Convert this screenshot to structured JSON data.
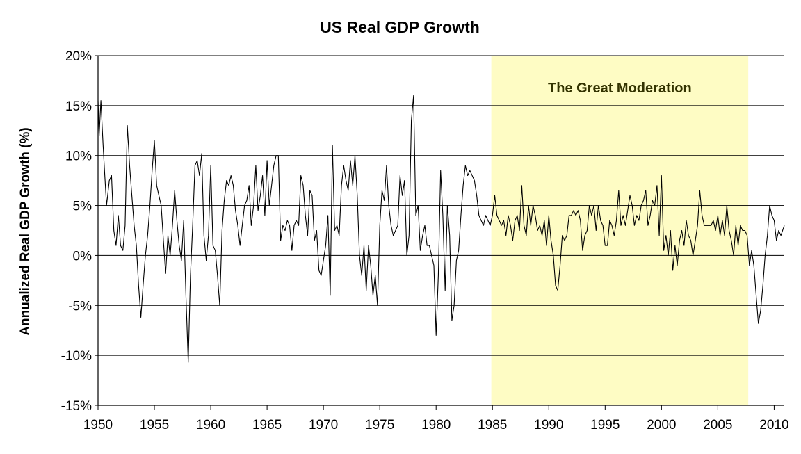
{
  "chart_data": {
    "type": "line",
    "title": "US Real GDP Growth",
    "xlabel": "",
    "ylabel": "Annualized Real GDP Growth (%)",
    "xlim": [
      1950,
      2010.9
    ],
    "ylim": [
      -15,
      20
    ],
    "x_ticks": [
      1950,
      1955,
      1960,
      1965,
      1970,
      1975,
      1980,
      1985,
      1990,
      1995,
      2000,
      2005,
      2010
    ],
    "x_tick_labels": [
      "1950",
      "1955",
      "1960",
      "1965",
      "1970",
      "1975",
      "1980",
      "1985",
      "1990",
      "1995",
      "2000",
      "2005",
      "2010"
    ],
    "y_ticks": [
      -15,
      -10,
      -5,
      0,
      5,
      10,
      15,
      20
    ],
    "y_tick_labels": [
      "-15%",
      "-10%",
      "-5%",
      "0%",
      "5%",
      "10%",
      "15%",
      "20%"
    ],
    "grid": "horizontal",
    "shaded_region": {
      "x_start": 1984.9,
      "x_end": 2007.7,
      "label": "The Great Moderation",
      "color": "#fefcc4"
    },
    "line_color": "#000000",
    "series": [
      {
        "values": [
          [
            1950.0,
            15.5
          ],
          [
            1950.1,
            12.0
          ],
          [
            1950.25,
            15.5
          ],
          [
            1950.45,
            11.0
          ],
          [
            1950.6,
            8.0
          ],
          [
            1950.75,
            5.0
          ],
          [
            1951.0,
            7.5
          ],
          [
            1951.2,
            8.0
          ],
          [
            1951.4,
            2.5
          ],
          [
            1951.6,
            1.0
          ],
          [
            1951.8,
            4.0
          ],
          [
            1952.0,
            1.0
          ],
          [
            1952.2,
            0.5
          ],
          [
            1952.4,
            3.0
          ],
          [
            1952.6,
            13.0
          ],
          [
            1952.8,
            9.0
          ],
          [
            1953.0,
            6.0
          ],
          [
            1953.2,
            3.0
          ],
          [
            1953.4,
            1.0
          ],
          [
            1953.6,
            -3.0
          ],
          [
            1953.8,
            -6.2
          ],
          [
            1954.0,
            -3.0
          ],
          [
            1954.2,
            0.0
          ],
          [
            1954.4,
            2.0
          ],
          [
            1954.6,
            5.0
          ],
          [
            1954.8,
            8.5
          ],
          [
            1955.0,
            11.5
          ],
          [
            1955.2,
            7.0
          ],
          [
            1955.4,
            6.0
          ],
          [
            1955.6,
            5.0
          ],
          [
            1955.8,
            1.5
          ],
          [
            1956.0,
            -1.8
          ],
          [
            1956.2,
            2.0
          ],
          [
            1956.4,
            0.0
          ],
          [
            1956.6,
            3.0
          ],
          [
            1956.8,
            6.5
          ],
          [
            1957.0,
            3.5
          ],
          [
            1957.2,
            1.0
          ],
          [
            1957.4,
            -0.5
          ],
          [
            1957.6,
            3.5
          ],
          [
            1957.8,
            -4.0
          ],
          [
            1958.0,
            -10.7
          ],
          [
            1958.2,
            -2.0
          ],
          [
            1958.4,
            3.0
          ],
          [
            1958.6,
            9.0
          ],
          [
            1958.8,
            9.5
          ],
          [
            1959.0,
            8.0
          ],
          [
            1959.2,
            10.2
          ],
          [
            1959.4,
            2.0
          ],
          [
            1959.6,
            -0.5
          ],
          [
            1959.8,
            2.0
          ],
          [
            1960.0,
            9.0
          ],
          [
            1960.2,
            1.0
          ],
          [
            1960.4,
            0.5
          ],
          [
            1960.6,
            -2.0
          ],
          [
            1960.8,
            -5.0
          ],
          [
            1961.0,
            2.5
          ],
          [
            1961.2,
            5.5
          ],
          [
            1961.4,
            7.5
          ],
          [
            1961.6,
            7.0
          ],
          [
            1961.8,
            8.0
          ],
          [
            1962.0,
            7.0
          ],
          [
            1962.2,
            4.5
          ],
          [
            1962.4,
            3.0
          ],
          [
            1962.6,
            1.0
          ],
          [
            1962.8,
            3.0
          ],
          [
            1963.0,
            5.0
          ],
          [
            1963.2,
            5.5
          ],
          [
            1963.4,
            7.0
          ],
          [
            1963.6,
            3.0
          ],
          [
            1963.8,
            5.0
          ],
          [
            1964.0,
            9.0
          ],
          [
            1964.2,
            4.5
          ],
          [
            1964.4,
            6.0
          ],
          [
            1964.6,
            8.0
          ],
          [
            1964.8,
            4.0
          ],
          [
            1965.0,
            9.5
          ],
          [
            1965.2,
            5.0
          ],
          [
            1965.4,
            7.0
          ],
          [
            1965.6,
            9.0
          ],
          [
            1965.8,
            10.0
          ],
          [
            1966.0,
            10.0
          ],
          [
            1966.2,
            1.5
          ],
          [
            1966.4,
            3.0
          ],
          [
            1966.6,
            2.5
          ],
          [
            1966.8,
            3.5
          ],
          [
            1967.0,
            3.0
          ],
          [
            1967.2,
            0.5
          ],
          [
            1967.4,
            3.0
          ],
          [
            1967.6,
            3.5
          ],
          [
            1967.8,
            3.0
          ],
          [
            1968.0,
            8.0
          ],
          [
            1968.2,
            7.0
          ],
          [
            1968.4,
            4.0
          ],
          [
            1968.6,
            2.0
          ],
          [
            1968.8,
            6.5
          ],
          [
            1969.0,
            6.0
          ],
          [
            1969.2,
            1.5
          ],
          [
            1969.4,
            2.5
          ],
          [
            1969.6,
            -1.5
          ],
          [
            1969.8,
            -2.0
          ],
          [
            1970.0,
            -0.5
          ],
          [
            1970.2,
            1.0
          ],
          [
            1970.4,
            4.0
          ],
          [
            1970.6,
            -4.0
          ],
          [
            1970.8,
            11.0
          ],
          [
            1971.0,
            2.5
          ],
          [
            1971.2,
            3.0
          ],
          [
            1971.4,
            2.0
          ],
          [
            1971.6,
            7.0
          ],
          [
            1971.8,
            9.0
          ],
          [
            1972.0,
            7.5
          ],
          [
            1972.2,
            6.5
          ],
          [
            1972.4,
            9.5
          ],
          [
            1972.6,
            7.0
          ],
          [
            1972.8,
            10.0
          ],
          [
            1973.0,
            6.0
          ],
          [
            1973.2,
            0.0
          ],
          [
            1973.4,
            -2.0
          ],
          [
            1973.6,
            1.0
          ],
          [
            1973.8,
            -3.5
          ],
          [
            1974.0,
            1.0
          ],
          [
            1974.2,
            -1.0
          ],
          [
            1974.4,
            -4.0
          ],
          [
            1974.6,
            -2.0
          ],
          [
            1974.8,
            -5.0
          ],
          [
            1975.0,
            3.0
          ],
          [
            1975.2,
            6.5
          ],
          [
            1975.4,
            5.5
          ],
          [
            1975.6,
            9.0
          ],
          [
            1975.8,
            5.0
          ],
          [
            1976.0,
            3.0
          ],
          [
            1976.2,
            2.0
          ],
          [
            1976.4,
            2.5
          ],
          [
            1976.6,
            3.0
          ],
          [
            1976.8,
            8.0
          ],
          [
            1977.0,
            6.0
          ],
          [
            1977.2,
            7.5
          ],
          [
            1977.4,
            0.0
          ],
          [
            1977.6,
            2.0
          ],
          [
            1977.8,
            13.5
          ],
          [
            1978.0,
            16.0
          ],
          [
            1978.2,
            4.0
          ],
          [
            1978.4,
            5.0
          ],
          [
            1978.6,
            0.5
          ],
          [
            1978.8,
            2.0
          ],
          [
            1979.0,
            3.0
          ],
          [
            1979.2,
            1.0
          ],
          [
            1979.4,
            1.0
          ],
          [
            1979.6,
            0.0
          ],
          [
            1979.8,
            -1.0
          ],
          [
            1980.0,
            -8.0
          ],
          [
            1980.2,
            -2.0
          ],
          [
            1980.4,
            8.5
          ],
          [
            1980.6,
            4.0
          ],
          [
            1980.8,
            -3.5
          ],
          [
            1981.0,
            5.0
          ],
          [
            1981.2,
            2.0
          ],
          [
            1981.4,
            -6.5
          ],
          [
            1981.6,
            -5.0
          ],
          [
            1981.8,
            -0.5
          ],
          [
            1982.0,
            0.5
          ],
          [
            1982.2,
            4.0
          ],
          [
            1982.4,
            7.0
          ],
          [
            1982.6,
            9.0
          ],
          [
            1982.8,
            8.0
          ],
          [
            1983.0,
            8.5
          ],
          [
            1983.2,
            8.0
          ],
          [
            1983.4,
            7.5
          ],
          [
            1983.6,
            6.0
          ],
          [
            1983.8,
            4.0
          ],
          [
            1984.0,
            3.5
          ],
          [
            1984.2,
            3.0
          ],
          [
            1984.4,
            4.0
          ],
          [
            1984.6,
            3.5
          ],
          [
            1984.8,
            3.0
          ],
          [
            1985.0,
            4.0
          ],
          [
            1985.2,
            6.0
          ],
          [
            1985.4,
            4.0
          ],
          [
            1985.6,
            3.5
          ],
          [
            1985.8,
            3.0
          ],
          [
            1986.0,
            3.5
          ],
          [
            1986.2,
            2.0
          ],
          [
            1986.4,
            4.0
          ],
          [
            1986.6,
            3.0
          ],
          [
            1986.8,
            1.5
          ],
          [
            1987.0,
            3.5
          ],
          [
            1987.2,
            4.0
          ],
          [
            1987.4,
            2.5
          ],
          [
            1987.6,
            7.0
          ],
          [
            1987.8,
            3.0
          ],
          [
            1988.0,
            2.0
          ],
          [
            1988.2,
            5.0
          ],
          [
            1988.4,
            3.0
          ],
          [
            1988.6,
            5.0
          ],
          [
            1988.8,
            4.0
          ],
          [
            1989.0,
            2.5
          ],
          [
            1989.2,
            3.0
          ],
          [
            1989.4,
            2.0
          ],
          [
            1989.6,
            3.5
          ],
          [
            1989.8,
            1.0
          ],
          [
            1990.0,
            4.0
          ],
          [
            1990.2,
            1.5
          ],
          [
            1990.4,
            0.0
          ],
          [
            1990.6,
            -3.0
          ],
          [
            1990.8,
            -3.5
          ],
          [
            1991.0,
            -1.0
          ],
          [
            1991.2,
            2.0
          ],
          [
            1991.4,
            1.5
          ],
          [
            1991.6,
            2.0
          ],
          [
            1991.8,
            4.0
          ],
          [
            1992.0,
            4.0
          ],
          [
            1992.2,
            4.5
          ],
          [
            1992.4,
            4.0
          ],
          [
            1992.6,
            4.5
          ],
          [
            1992.8,
            3.5
          ],
          [
            1993.0,
            0.5
          ],
          [
            1993.2,
            2.0
          ],
          [
            1993.4,
            2.5
          ],
          [
            1993.6,
            5.0
          ],
          [
            1993.8,
            4.0
          ],
          [
            1994.0,
            5.0
          ],
          [
            1994.2,
            2.5
          ],
          [
            1994.4,
            5.0
          ],
          [
            1994.6,
            3.5
          ],
          [
            1994.8,
            3.0
          ],
          [
            1995.0,
            1.0
          ],
          [
            1995.2,
            1.0
          ],
          [
            1995.4,
            3.5
          ],
          [
            1995.6,
            3.0
          ],
          [
            1995.8,
            2.0
          ],
          [
            1996.0,
            3.5
          ],
          [
            1996.2,
            6.5
          ],
          [
            1996.4,
            3.0
          ],
          [
            1996.6,
            4.0
          ],
          [
            1996.8,
            3.0
          ],
          [
            1997.0,
            4.5
          ],
          [
            1997.2,
            6.0
          ],
          [
            1997.4,
            5.0
          ],
          [
            1997.6,
            3.0
          ],
          [
            1997.8,
            4.0
          ],
          [
            1998.0,
            3.5
          ],
          [
            1998.2,
            5.0
          ],
          [
            1998.4,
            5.5
          ],
          [
            1998.6,
            6.5
          ],
          [
            1998.8,
            3.0
          ],
          [
            1999.0,
            4.0
          ],
          [
            1999.2,
            5.5
          ],
          [
            1999.4,
            5.0
          ],
          [
            1999.6,
            7.0
          ],
          [
            1999.8,
            2.0
          ],
          [
            2000.0,
            8.0
          ],
          [
            2000.2,
            0.5
          ],
          [
            2000.4,
            2.0
          ],
          [
            2000.6,
            0.0
          ],
          [
            2000.8,
            2.5
          ],
          [
            2001.0,
            -1.5
          ],
          [
            2001.2,
            1.0
          ],
          [
            2001.4,
            -1.0
          ],
          [
            2001.6,
            1.5
          ],
          [
            2001.8,
            2.5
          ],
          [
            2002.0,
            1.0
          ],
          [
            2002.2,
            3.5
          ],
          [
            2002.4,
            2.0
          ],
          [
            2002.6,
            1.5
          ],
          [
            2002.8,
            0.0
          ],
          [
            2003.0,
            1.5
          ],
          [
            2003.2,
            3.0
          ],
          [
            2003.4,
            6.5
          ],
          [
            2003.6,
            4.0
          ],
          [
            2003.8,
            3.0
          ],
          [
            2004.0,
            3.0
          ],
          [
            2004.2,
            3.0
          ],
          [
            2004.4,
            3.0
          ],
          [
            2004.6,
            3.5
          ],
          [
            2004.8,
            2.5
          ],
          [
            2005.0,
            4.0
          ],
          [
            2005.2,
            2.0
          ],
          [
            2005.4,
            3.5
          ],
          [
            2005.6,
            2.0
          ],
          [
            2005.8,
            5.0
          ],
          [
            2006.0,
            2.5
          ],
          [
            2006.2,
            1.5
          ],
          [
            2006.4,
            0.0
          ],
          [
            2006.6,
            3.0
          ],
          [
            2006.8,
            1.0
          ],
          [
            2007.0,
            3.0
          ],
          [
            2007.2,
            2.5
          ],
          [
            2007.4,
            2.5
          ],
          [
            2007.6,
            2.0
          ],
          [
            2007.8,
            -1.0
          ],
          [
            2008.0,
            0.5
          ],
          [
            2008.2,
            -1.0
          ],
          [
            2008.4,
            -4.0
          ],
          [
            2008.6,
            -6.8
          ],
          [
            2008.8,
            -5.5
          ],
          [
            2009.0,
            -3.0
          ],
          [
            2009.2,
            0.0
          ],
          [
            2009.4,
            2.0
          ],
          [
            2009.6,
            5.0
          ],
          [
            2009.8,
            4.0
          ],
          [
            2010.0,
            3.5
          ],
          [
            2010.2,
            1.5
          ],
          [
            2010.4,
            2.5
          ],
          [
            2010.6,
            2.0
          ],
          [
            2010.9,
            3.0
          ]
        ]
      }
    ]
  }
}
